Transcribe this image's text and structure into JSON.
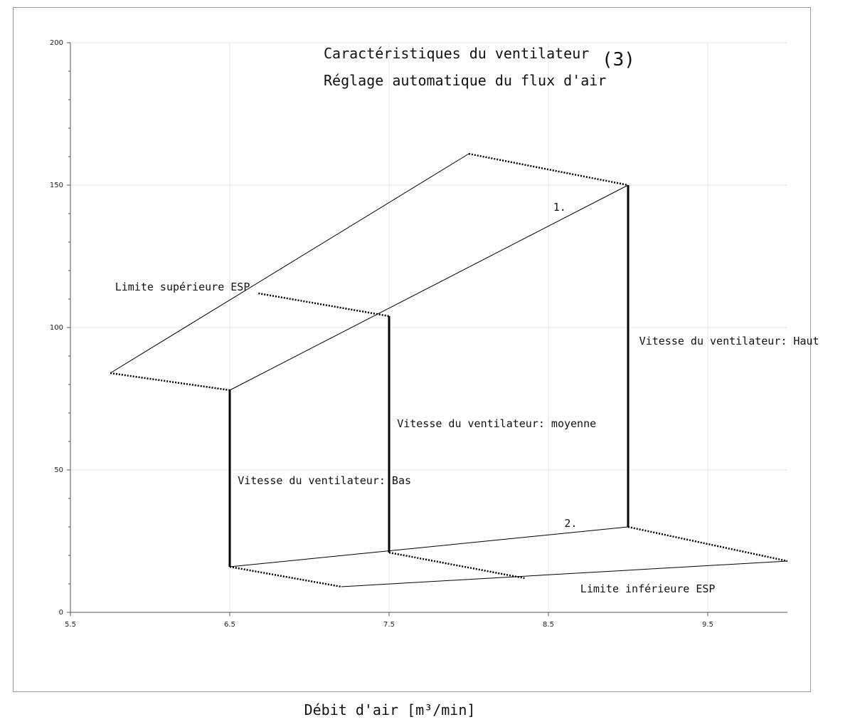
{
  "chart_data": {
    "type": "line",
    "title": "Caractéristiques du ventilateur",
    "title_suffix": "(3)",
    "subtitle": "Réglage automatique du flux d'air",
    "xlabel": "Débit d'air [m³/min]",
    "ylabel": "",
    "xlim": [
      5.5,
      10
    ],
    "ylim": [
      0,
      200
    ],
    "xticks": [
      5.5,
      6.5,
      7.5,
      8.5,
      9.5
    ],
    "xtick_labels": [
      "5.5",
      "6.5",
      "7.5",
      "8.5",
      "9.5"
    ],
    "yticks": [
      0,
      50,
      100,
      150,
      200
    ],
    "ytick_labels": [
      "0",
      "50",
      "100",
      "150",
      "200"
    ],
    "y_minor_step": 10,
    "grid": true,
    "colors": {
      "line": "#000000",
      "grid": "#e6e6e6",
      "frame": "#9a9a9a"
    },
    "series": [
      {
        "style": "solid-thin",
        "x": [
          5.75,
          8.0
        ],
        "y": [
          84,
          161
        ]
      },
      {
        "style": "solid-thin",
        "x": [
          6.5,
          9.0
        ],
        "y": [
          78,
          150
        ]
      },
      {
        "style": "solid-thin",
        "x": [
          6.5,
          9.0
        ],
        "y": [
          16,
          30
        ]
      },
      {
        "style": "solid-thin",
        "x": [
          7.2,
          10.0
        ],
        "y": [
          9,
          18
        ]
      },
      {
        "style": "solid-thick",
        "x": [
          6.5,
          6.5
        ],
        "y": [
          16,
          78
        ]
      },
      {
        "style": "solid-thick",
        "x": [
          7.5,
          7.5
        ],
        "y": [
          21,
          104
        ]
      },
      {
        "style": "solid-thick",
        "x": [
          9.0,
          9.0
        ],
        "y": [
          30,
          150
        ]
      },
      {
        "style": "dashed",
        "x": [
          5.75,
          6.5
        ],
        "y": [
          84,
          78
        ]
      },
      {
        "style": "dashed",
        "x": [
          6.68,
          7.5
        ],
        "y": [
          112,
          104
        ]
      },
      {
        "style": "dashed",
        "x": [
          8.0,
          9.0
        ],
        "y": [
          161,
          150
        ]
      },
      {
        "style": "dashed",
        "x": [
          6.5,
          7.2
        ],
        "y": [
          16,
          9
        ]
      },
      {
        "style": "dashed",
        "x": [
          7.5,
          8.35
        ],
        "y": [
          21,
          12
        ]
      },
      {
        "style": "dashed",
        "x": [
          9.0,
          10.0
        ],
        "y": [
          30,
          18
        ]
      }
    ],
    "annotations": [
      {
        "text": "Limite supérieure ESP",
        "x": 5.78,
        "y": 113
      },
      {
        "text": "1.",
        "x": 8.53,
        "y": 141
      },
      {
        "text": "Vitesse du ventilateur: Haut",
        "x": 9.07,
        "y": 94
      },
      {
        "text": "Vitesse du ventilateur: moyenne",
        "x": 7.55,
        "y": 65
      },
      {
        "text": "Vitesse du ventilateur: Bas",
        "x": 6.55,
        "y": 45
      },
      {
        "text": "2.",
        "x": 8.6,
        "y": 30
      },
      {
        "text": "Limite inférieure ESP",
        "x": 8.7,
        "y": 7
      }
    ]
  }
}
